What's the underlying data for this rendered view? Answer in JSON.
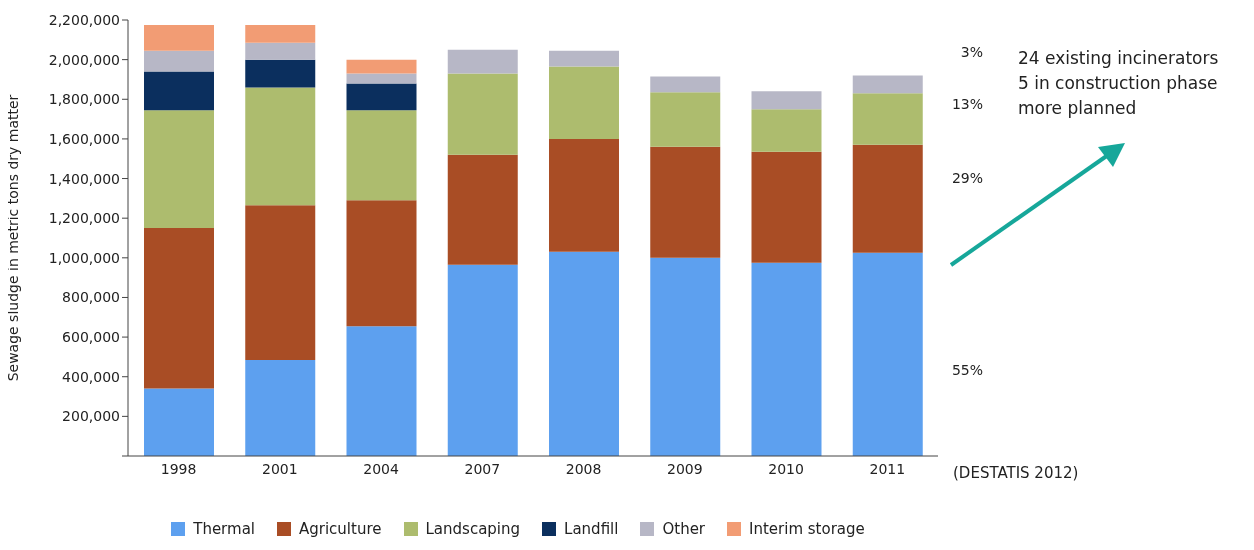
{
  "chart_data": {
    "type": "bar",
    "stacked": true,
    "ylabel": "Sewage sludge in metric tons dry matter",
    "categories": [
      "1998",
      "2001",
      "2004",
      "2007",
      "2008",
      "2009",
      "2010",
      "2011"
    ],
    "series": [
      {
        "name": "Thermal",
        "color": "#5da0ef",
        "values": [
          340000,
          485000,
          655000,
          965000,
          1030000,
          1000000,
          975000,
          1025000
        ]
      },
      {
        "name": "Agriculture",
        "color": "#a94d25",
        "values": [
          810000,
          780000,
          635000,
          555000,
          570000,
          560000,
          560000,
          545000
        ]
      },
      {
        "name": "Landscaping",
        "color": "#adbc6e",
        "values": [
          595000,
          595000,
          455000,
          410000,
          365000,
          275000,
          215000,
          260000
        ]
      },
      {
        "name": "Landfill",
        "color": "#0b2f5e",
        "values": [
          195000,
          140000,
          135000,
          0,
          0,
          0,
          0,
          0
        ]
      },
      {
        "name": "Other",
        "color": "#b7b7c6",
        "values": [
          105000,
          85000,
          50000,
          120000,
          80000,
          80000,
          90000,
          90000
        ]
      },
      {
        "name": "Interim storage",
        "color": "#f29c74",
        "values": [
          130000,
          90000,
          70000,
          0,
          0,
          0,
          0,
          0
        ]
      }
    ],
    "ylim": [
      0,
      2200000
    ],
    "yticks": [
      {
        "value": 0,
        "label": null
      },
      {
        "value": 200000,
        "label": "200,000"
      },
      {
        "value": 400000,
        "label": "400,000"
      },
      {
        "value": 600000,
        "label": "600,000"
      },
      {
        "value": 800000,
        "label": "800,000"
      },
      {
        "value": 1000000,
        "label": "1,000,000"
      },
      {
        "value": 1200000,
        "label": "1,200,000"
      },
      {
        "value": 1400000,
        "label": "1,400,000"
      },
      {
        "value": 1600000,
        "label": "1,600,000"
      },
      {
        "value": 1800000,
        "label": "1,800,000"
      },
      {
        "value": 2000000,
        "label": "2,000,000"
      },
      {
        "value": 2200000,
        "label": "2,200,000"
      }
    ],
    "grid": false,
    "legend": "bottom",
    "annotations": [
      "3%",
      "13%",
      "29%",
      "55%",
      "(DESTATIS 2012)",
      "24 existing incinerators\n5 in construction phase\nmore planned"
    ]
  }
}
